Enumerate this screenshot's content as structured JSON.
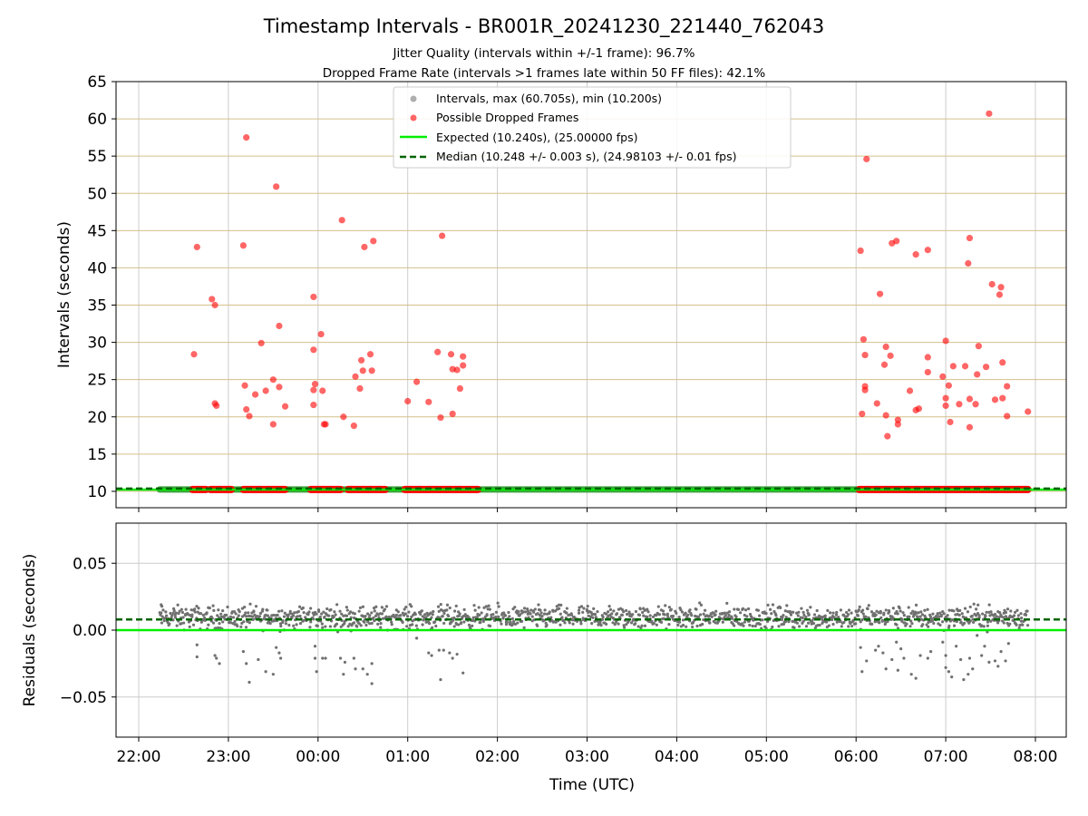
{
  "chart_data": [
    {
      "type": "scatter",
      "title": "Timestamp Intervals - BR001R_20241230_221440_762043",
      "subtitle_lines": [
        "Jitter Quality (intervals within +/-1 frame): 96.7%",
        "Dropped Frame Rate (intervals >1 frames late within 50 FF files): 42.1%"
      ],
      "xlabel": "",
      "ylabel": "Intervals (seconds)",
      "x_unit": "hours since 22:00 UTC on the plotted axis",
      "xlim_labels": [
        "22:00",
        "08:00"
      ],
      "ylim": [
        7.8,
        65
      ],
      "yticks": [
        10,
        15,
        20,
        25,
        30,
        35,
        40,
        45,
        50,
        55,
        60,
        65
      ],
      "grid": "horizontal tan lines, vertical light gray lines",
      "legend_position": "top-center",
      "legend": [
        {
          "label": "Intervals, max (60.705s), min (10.200s)",
          "marker": "gray-dot"
        },
        {
          "label": "Possible Dropped Frames",
          "marker": "red-dot"
        },
        {
          "label": "Expected (10.240s), (25.00000 fps)",
          "marker": "green-line"
        },
        {
          "label": "Median (10.248 +/- 0.003 s), (24.98103 +/- 0.01 fps)",
          "marker": "darkgreen-dash"
        }
      ],
      "expected_line": 10.24,
      "median_line": 10.248,
      "baseline_intervals": {
        "value": 10.248,
        "x_start": "22:14",
        "x_end": "07:55"
      },
      "dropped_frames_baseline_segments": [
        [
          "22:36",
          "22:45"
        ],
        [
          "22:48",
          "23:02"
        ],
        [
          "23:10",
          "23:38"
        ],
        [
          "23:55",
          "00:15"
        ],
        [
          "00:20",
          "00:45"
        ],
        [
          "00:58",
          "01:47"
        ],
        [
          "06:02",
          "07:55"
        ]
      ],
      "dropped_frames_points": [
        {
          "x": "22:37",
          "y": 28.4
        },
        {
          "x": "22:39",
          "y": 42.8
        },
        {
          "x": "22:49",
          "y": 35.8
        },
        {
          "x": "22:51",
          "y": 35.0
        },
        {
          "x": "22:51",
          "y": 21.8
        },
        {
          "x": "22:52",
          "y": 21.5
        },
        {
          "x": "23:10",
          "y": 43.0
        },
        {
          "x": "23:12",
          "y": 57.5
        },
        {
          "x": "23:11",
          "y": 24.2
        },
        {
          "x": "23:12",
          "y": 21.0
        },
        {
          "x": "23:14",
          "y": 20.1
        },
        {
          "x": "23:18",
          "y": 23.0
        },
        {
          "x": "23:22",
          "y": 29.9
        },
        {
          "x": "23:25",
          "y": 23.5
        },
        {
          "x": "23:30",
          "y": 19.0
        },
        {
          "x": "23:30",
          "y": 25.0
        },
        {
          "x": "23:32",
          "y": 50.9
        },
        {
          "x": "23:34",
          "y": 32.2
        },
        {
          "x": "23:34",
          "y": 24.0
        },
        {
          "x": "23:38",
          "y": 21.4
        },
        {
          "x": "23:57",
          "y": 36.1
        },
        {
          "x": "23:57",
          "y": 29.0
        },
        {
          "x": "23:58",
          "y": 24.4
        },
        {
          "x": "23:57",
          "y": 23.6
        },
        {
          "x": "23:57",
          "y": 21.6
        },
        {
          "x": "00:02",
          "y": 31.1
        },
        {
          "x": "00:03",
          "y": 23.5
        },
        {
          "x": "00:04",
          "y": 19.0
        },
        {
          "x": "00:05",
          "y": 19.0
        },
        {
          "x": "00:16",
          "y": 46.4
        },
        {
          "x": "00:17",
          "y": 20.0
        },
        {
          "x": "00:24",
          "y": 18.8
        },
        {
          "x": "00:25",
          "y": 25.4
        },
        {
          "x": "00:28",
          "y": 23.8
        },
        {
          "x": "00:29",
          "y": 27.6
        },
        {
          "x": "00:30",
          "y": 26.2
        },
        {
          "x": "00:31",
          "y": 42.8
        },
        {
          "x": "00:35",
          "y": 28.4
        },
        {
          "x": "00:36",
          "y": 26.2
        },
        {
          "x": "00:37",
          "y": 43.6
        },
        {
          "x": "01:00",
          "y": 22.1
        },
        {
          "x": "01:06",
          "y": 24.7
        },
        {
          "x": "01:14",
          "y": 22.0
        },
        {
          "x": "01:20",
          "y": 28.7
        },
        {
          "x": "01:22",
          "y": 19.9
        },
        {
          "x": "01:23",
          "y": 44.3
        },
        {
          "x": "01:29",
          "y": 28.4
        },
        {
          "x": "01:30",
          "y": 26.4
        },
        {
          "x": "01:30",
          "y": 20.4
        },
        {
          "x": "01:33",
          "y": 26.3
        },
        {
          "x": "01:35",
          "y": 23.8
        },
        {
          "x": "01:37",
          "y": 28.1
        },
        {
          "x": "01:37",
          "y": 26.9
        },
        {
          "x": "06:03",
          "y": 42.3
        },
        {
          "x": "06:04",
          "y": 20.4
        },
        {
          "x": "06:05",
          "y": 30.4
        },
        {
          "x": "06:06",
          "y": 28.3
        },
        {
          "x": "06:06",
          "y": 24.1
        },
        {
          "x": "06:06",
          "y": 23.6
        },
        {
          "x": "06:07",
          "y": 54.6
        },
        {
          "x": "06:14",
          "y": 21.8
        },
        {
          "x": "06:16",
          "y": 36.5
        },
        {
          "x": "06:19",
          "y": 27.0
        },
        {
          "x": "06:20",
          "y": 29.4
        },
        {
          "x": "06:20",
          "y": 20.2
        },
        {
          "x": "06:21",
          "y": 17.4
        },
        {
          "x": "06:23",
          "y": 28.2
        },
        {
          "x": "06:24",
          "y": 43.3
        },
        {
          "x": "06:27",
          "y": 43.6
        },
        {
          "x": "06:28",
          "y": 19.6
        },
        {
          "x": "06:28",
          "y": 19.0
        },
        {
          "x": "06:36",
          "y": 23.5
        },
        {
          "x": "06:40",
          "y": 20.9
        },
        {
          "x": "06:40",
          "y": 41.8
        },
        {
          "x": "06:42",
          "y": 21.1
        },
        {
          "x": "06:48",
          "y": 28.0
        },
        {
          "x": "06:48",
          "y": 26.0
        },
        {
          "x": "06:48",
          "y": 42.4
        },
        {
          "x": "06:58",
          "y": 25.4
        },
        {
          "x": "07:00",
          "y": 30.2
        },
        {
          "x": "07:00",
          "y": 22.5
        },
        {
          "x": "07:00",
          "y": 21.5
        },
        {
          "x": "07:02",
          "y": 24.2
        },
        {
          "x": "07:03",
          "y": 19.3
        },
        {
          "x": "07:05",
          "y": 26.8
        },
        {
          "x": "07:09",
          "y": 21.7
        },
        {
          "x": "07:13",
          "y": 26.8
        },
        {
          "x": "07:15",
          "y": 40.6
        },
        {
          "x": "07:16",
          "y": 22.4
        },
        {
          "x": "07:16",
          "y": 18.6
        },
        {
          "x": "07:16",
          "y": 44.0
        },
        {
          "x": "07:20",
          "y": 21.7
        },
        {
          "x": "07:21",
          "y": 25.7
        },
        {
          "x": "07:22",
          "y": 29.5
        },
        {
          "x": "07:27",
          "y": 26.7
        },
        {
          "x": "07:29",
          "y": 60.7
        },
        {
          "x": "07:31",
          "y": 37.8
        },
        {
          "x": "07:33",
          "y": 22.3
        },
        {
          "x": "07:36",
          "y": 36.4
        },
        {
          "x": "07:37",
          "y": 37.4
        },
        {
          "x": "07:38",
          "y": 27.3
        },
        {
          "x": "07:38",
          "y": 22.5
        },
        {
          "x": "07:41",
          "y": 24.1
        },
        {
          "x": "07:41",
          "y": 20.1
        },
        {
          "x": "07:55",
          "y": 20.7
        }
      ],
      "series": [
        {
          "name": "Intervals, max (60.705s), min (10.200s)",
          "color": "#a0a0a0"
        },
        {
          "name": "Possible Dropped Frames",
          "color": "#ff0000"
        },
        {
          "name": "Expected (10.240s), (25.00000 fps)",
          "color": "#00ee00"
        },
        {
          "name": "Median (10.248 +/- 0.003 s), (24.98103 +/- 0.01 fps)",
          "color": "#006400"
        }
      ]
    },
    {
      "type": "scatter",
      "xlabel": "Time (UTC)",
      "ylabel": "Residuals (seconds)",
      "xticks": [
        "22:00",
        "23:00",
        "00:00",
        "01:00",
        "02:00",
        "03:00",
        "04:00",
        "05:00",
        "06:00",
        "07:00",
        "08:00"
      ],
      "ylim": [
        -0.08,
        0.08
      ],
      "yticks": [
        0.05,
        0.0,
        -0.05
      ],
      "ytick_labels": [
        "0.05",
        "0.00",
        "−0.05"
      ],
      "grid": "light gray",
      "zero_line": 0.0,
      "median_residual_line": 0.008,
      "residual_band": {
        "x_start": "22:14",
        "x_end": "07:55",
        "center": 0.008,
        "range": [
          0.002,
          0.017
        ]
      },
      "outlier_residuals": [
        {
          "x": "22:15",
          "y": 0.019
        },
        {
          "x": "22:39",
          "y": -0.011
        },
        {
          "x": "22:39",
          "y": -0.02
        },
        {
          "x": "22:51",
          "y": -0.019
        },
        {
          "x": "22:52",
          "y": -0.021
        },
        {
          "x": "22:54",
          "y": -0.025
        },
        {
          "x": "22:55",
          "y": 0.012
        },
        {
          "x": "23:10",
          "y": -0.016
        },
        {
          "x": "23:12",
          "y": -0.025
        },
        {
          "x": "23:14",
          "y": -0.039
        },
        {
          "x": "23:20",
          "y": -0.022
        },
        {
          "x": "23:25",
          "y": -0.031
        },
        {
          "x": "23:30",
          "y": -0.033
        },
        {
          "x": "23:32",
          "y": -0.013
        },
        {
          "x": "23:34",
          "y": -0.017
        },
        {
          "x": "23:35",
          "y": -0.021
        },
        {
          "x": "23:58",
          "y": -0.012
        },
        {
          "x": "23:58",
          "y": -0.021
        },
        {
          "x": "23:59",
          "y": -0.031
        },
        {
          "x": "00:03",
          "y": -0.021
        },
        {
          "x": "00:05",
          "y": -0.021
        },
        {
          "x": "00:15",
          "y": -0.021
        },
        {
          "x": "00:18",
          "y": -0.024
        },
        {
          "x": "00:17",
          "y": -0.033
        },
        {
          "x": "00:24",
          "y": -0.021
        },
        {
          "x": "00:25",
          "y": -0.029
        },
        {
          "x": "00:30",
          "y": -0.029
        },
        {
          "x": "00:33",
          "y": -0.033
        },
        {
          "x": "00:36",
          "y": -0.025
        },
        {
          "x": "00:36",
          "y": -0.04
        },
        {
          "x": "01:06",
          "y": -0.006
        },
        {
          "x": "01:14",
          "y": -0.017
        },
        {
          "x": "01:16",
          "y": -0.019
        },
        {
          "x": "01:21",
          "y": -0.015
        },
        {
          "x": "01:22",
          "y": -0.037
        },
        {
          "x": "01:24",
          "y": -0.015
        },
        {
          "x": "01:28",
          "y": -0.017
        },
        {
          "x": "01:30",
          "y": -0.021
        },
        {
          "x": "01:33",
          "y": -0.018
        },
        {
          "x": "01:37",
          "y": -0.032
        },
        {
          "x": "06:03",
          "y": -0.013
        },
        {
          "x": "06:04",
          "y": -0.031
        },
        {
          "x": "06:07",
          "y": -0.023
        },
        {
          "x": "06:13",
          "y": -0.015
        },
        {
          "x": "06:15",
          "y": -0.012
        },
        {
          "x": "06:18",
          "y": -0.017
        },
        {
          "x": "06:20",
          "y": -0.029
        },
        {
          "x": "06:24",
          "y": -0.022
        },
        {
          "x": "06:27",
          "y": -0.009
        },
        {
          "x": "06:28",
          "y": -0.03
        },
        {
          "x": "06:30",
          "y": -0.014
        },
        {
          "x": "06:32",
          "y": -0.021
        },
        {
          "x": "06:37",
          "y": -0.033
        },
        {
          "x": "06:40",
          "y": -0.036
        },
        {
          "x": "06:43",
          "y": -0.019
        },
        {
          "x": "06:48",
          "y": -0.021
        },
        {
          "x": "06:50",
          "y": -0.016
        },
        {
          "x": "06:58",
          "y": -0.009
        },
        {
          "x": "07:00",
          "y": -0.019
        },
        {
          "x": "07:00",
          "y": -0.028
        },
        {
          "x": "07:02",
          "y": -0.031
        },
        {
          "x": "07:04",
          "y": -0.035
        },
        {
          "x": "07:07",
          "y": -0.012
        },
        {
          "x": "07:10",
          "y": -0.022
        },
        {
          "x": "07:12",
          "y": -0.037
        },
        {
          "x": "07:15",
          "y": -0.033
        },
        {
          "x": "07:16",
          "y": -0.021
        },
        {
          "x": "07:18",
          "y": -0.029
        },
        {
          "x": "07:21",
          "y": -0.004
        },
        {
          "x": "07:24",
          "y": -0.019
        },
        {
          "x": "07:26",
          "y": -0.012
        },
        {
          "x": "07:29",
          "y": -0.024
        },
        {
          "x": "07:33",
          "y": -0.023
        },
        {
          "x": "07:35",
          "y": -0.027
        },
        {
          "x": "07:37",
          "y": -0.016
        },
        {
          "x": "07:40",
          "y": -0.023
        },
        {
          "x": "07:42",
          "y": -0.01
        }
      ],
      "colors": {
        "residuals": "#707070",
        "zero_line": "#00ee00",
        "median_line": "#006400"
      }
    }
  ]
}
